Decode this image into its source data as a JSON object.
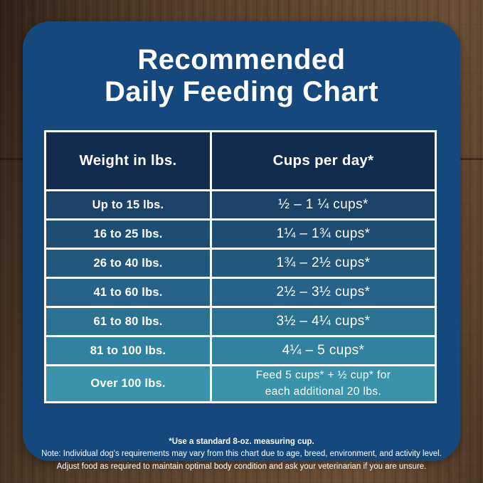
{
  "title": {
    "line1": "Recommended",
    "line2": "Daily Feeding Chart"
  },
  "table": {
    "headers": {
      "weight": "Weight in lbs.",
      "cups": "Cups per day*"
    },
    "header_color": "#122c4d",
    "rows": [
      {
        "weight": "Up to 15 lbs.",
        "cups": "½ – 1 ¼ cups*",
        "color": "#1b4369"
      },
      {
        "weight": "16 to 25 lbs.",
        "cups": "1¼ – 1¾  cups*",
        "color": "#1e4d73"
      },
      {
        "weight": "26 to 40 lbs.",
        "cups": "1¾ – 2½ cups*",
        "color": "#22587e"
      },
      {
        "weight": "41 to 60 lbs.",
        "cups": "2½ – 3½ cups*",
        "color": "#266289"
      },
      {
        "weight": "61 to 80 lbs.",
        "cups": "3½ – 4¼ cups*",
        "color": "#2b7192"
      },
      {
        "weight": "81 to 100 lbs.",
        "cups": "4¼ – 5 cups*",
        "color": "#3182a0"
      },
      {
        "weight": "Over 100 lbs.",
        "cups_line1": "Feed 5 cups*  + ½ cup* for",
        "cups_line2": "each  additional 20 lbs.",
        "color": "#3893ab"
      }
    ]
  },
  "footnotes": {
    "line1": "*Use a standard 8-oz. measuring cup.",
    "line2": "Note: Individual dog's requirements may vary from this chart due to age, breed, environment, and activity level.",
    "line3": "Adjust food as required to maintain optimal body condition and ask your veterinarian if you are unsure."
  },
  "colors": {
    "card_background": "#15497d",
    "text": "#ffffff",
    "wood_background": "#553d29"
  },
  "chart_data": {
    "type": "table",
    "title": "Recommended Daily Feeding Chart",
    "columns": [
      "Weight in lbs.",
      "Cups per day*"
    ],
    "rows": [
      [
        "Up to 15 lbs.",
        "½ – 1 ¼ cups*"
      ],
      [
        "16 to 25 lbs.",
        "1¼ – 1¾ cups*"
      ],
      [
        "26 to 40 lbs.",
        "1¾ – 2½ cups*"
      ],
      [
        "41 to 60 lbs.",
        "2½ – 3½ cups*"
      ],
      [
        "61 to 80 lbs.",
        "3½ – 4¼ cups*"
      ],
      [
        "81 to 100 lbs.",
        "4¼ – 5 cups*"
      ],
      [
        "Over 100 lbs.",
        "Feed 5 cups* + ½ cup* for each additional 20 lbs."
      ]
    ],
    "footnote": "*Use a standard 8-oz. measuring cup."
  }
}
